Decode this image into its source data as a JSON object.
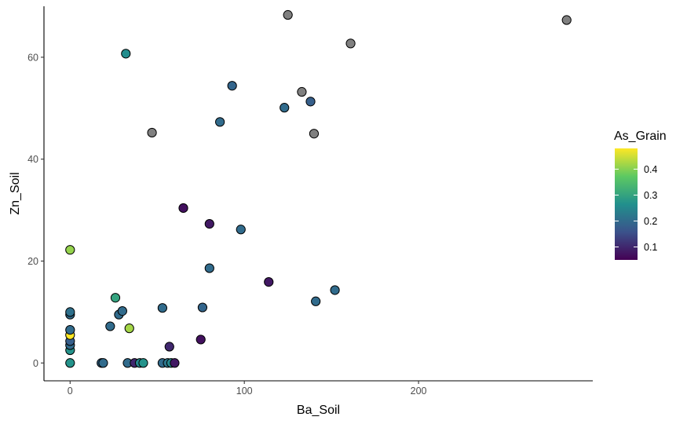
{
  "chart_data": {
    "type": "scatter",
    "title": "",
    "xlabel": "Ba_Soil",
    "ylabel": "Zn_Soil",
    "xlim": [
      -15,
      300
    ],
    "ylim": [
      -3.5,
      70
    ],
    "xticks": [
      0,
      100,
      200
    ],
    "yticks": [
      0,
      20,
      40,
      60
    ],
    "grid": false,
    "colorbar": {
      "title": "As_Grain",
      "range": [
        0.05,
        0.48
      ],
      "ticks": [
        0.1,
        0.2,
        0.3,
        0.4
      ],
      "colors": [
        "#440154",
        "#3b528b",
        "#21908d",
        "#5dc962",
        "#fde725"
      ],
      "na_color": "#808080",
      "placement": "right"
    },
    "points": [
      {
        "x": 0,
        "y": 0,
        "c": 0.27
      },
      {
        "x": 0,
        "y": 2.5,
        "c": 0.27
      },
      {
        "x": 0,
        "y": 3.5,
        "c": 0.2
      },
      {
        "x": 0,
        "y": 4.3,
        "c": 0.18
      },
      {
        "x": 0,
        "y": 5.5,
        "c": 0.48
      },
      {
        "x": 0,
        "y": 6.5,
        "c": 0.2
      },
      {
        "x": 0,
        "y": 9.5,
        "c": 0.2
      },
      {
        "x": 0,
        "y": 10,
        "c": 0.21
      },
      {
        "x": 0,
        "y": 22.2,
        "c": 0.41
      },
      {
        "x": 18,
        "y": 0,
        "c": 0.19
      },
      {
        "x": 19,
        "y": 0,
        "c": 0.2
      },
      {
        "x": 23,
        "y": 7.2,
        "c": 0.2
      },
      {
        "x": 26,
        "y": 12.8,
        "c": 0.3
      },
      {
        "x": 28,
        "y": 9.5,
        "c": 0.2
      },
      {
        "x": 30,
        "y": 10.2,
        "c": 0.2
      },
      {
        "x": 32,
        "y": 60.7,
        "c": 0.26
      },
      {
        "x": 33,
        "y": 0,
        "c": 0.2
      },
      {
        "x": 34,
        "y": 6.8,
        "c": 0.42
      },
      {
        "x": 37,
        "y": 0,
        "c": 0.1
      },
      {
        "x": 40,
        "y": 0,
        "c": 0.25
      },
      {
        "x": 42,
        "y": 0,
        "c": 0.27
      },
      {
        "x": 47,
        "y": 45.2,
        "c": null
      },
      {
        "x": 53,
        "y": 10.8,
        "c": 0.2
      },
      {
        "x": 53,
        "y": 0,
        "c": 0.2
      },
      {
        "x": 56,
        "y": 0,
        "c": 0.22
      },
      {
        "x": 57,
        "y": 3.2,
        "c": 0.1
      },
      {
        "x": 58,
        "y": 0,
        "c": 0.25
      },
      {
        "x": 60,
        "y": 0,
        "c": 0.08
      },
      {
        "x": 65,
        "y": 30.4,
        "c": 0.07
      },
      {
        "x": 75,
        "y": 4.6,
        "c": 0.07
      },
      {
        "x": 76,
        "y": 10.9,
        "c": 0.19
      },
      {
        "x": 80,
        "y": 27.3,
        "c": 0.08
      },
      {
        "x": 80,
        "y": 18.6,
        "c": 0.2
      },
      {
        "x": 86,
        "y": 47.3,
        "c": 0.2
      },
      {
        "x": 93,
        "y": 54.4,
        "c": 0.19
      },
      {
        "x": 98,
        "y": 26.2,
        "c": 0.2
      },
      {
        "x": 114,
        "y": 15.9,
        "c": 0.08
      },
      {
        "x": 123,
        "y": 50.1,
        "c": 0.2
      },
      {
        "x": 125,
        "y": 68.3,
        "c": null
      },
      {
        "x": 133,
        "y": 53.2,
        "c": null
      },
      {
        "x": 138,
        "y": 51.3,
        "c": 0.18
      },
      {
        "x": 140,
        "y": 45.0,
        "c": null
      },
      {
        "x": 141,
        "y": 12.1,
        "c": 0.2
      },
      {
        "x": 152,
        "y": 14.3,
        "c": 0.2
      },
      {
        "x": 161,
        "y": 62.7,
        "c": null
      },
      {
        "x": 285,
        "y": 67.3,
        "c": null
      }
    ]
  }
}
